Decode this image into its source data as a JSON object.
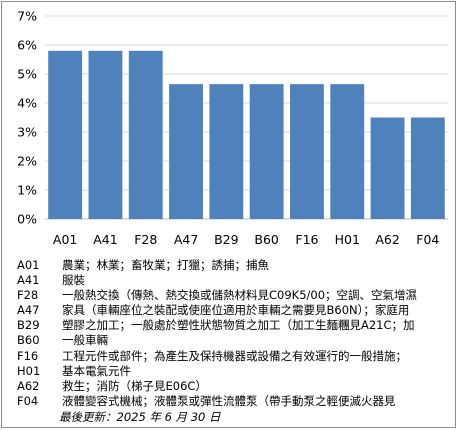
{
  "chart_data": {
    "type": "bar",
    "categories": [
      "A01",
      "A41",
      "F28",
      "A47",
      "B29",
      "B60",
      "F16",
      "H01",
      "A62",
      "F04"
    ],
    "values": [
      5.8,
      5.8,
      5.8,
      4.65,
      4.65,
      4.65,
      4.65,
      4.65,
      3.5,
      3.5
    ],
    "y_ticks": [
      "0%",
      "1%",
      "2%",
      "3%",
      "4%",
      "5%",
      "6%",
      "7%"
    ],
    "ylim": [
      0,
      7
    ],
    "grid": true,
    "bar_color": "#4f81bd",
    "grid_color": "#d9d9d9",
    "legend": [
      {
        "code": "A01",
        "desc": "農業；林業；畜牧業；打獵；誘捕；捕魚"
      },
      {
        "code": "A41",
        "desc": "服裝"
      },
      {
        "code": "F28",
        "desc": "一般熱交換（傳熱、熱交換或儲熱材料見C09K5/00；空調、空氣增濕"
      },
      {
        "code": "A47",
        "desc": "家具（車輛座位之裝配或使座位適用於車輛之需要見B60N）；家庭用"
      },
      {
        "code": "B29",
        "desc": "塑膠之加工；一般處於塑性狀態物質之加工（加工生麵糰見A21C；加"
      },
      {
        "code": "B60",
        "desc": "一般車輛"
      },
      {
        "code": "F16",
        "desc": "工程元件或部件；為產生及保持機器或設備之有效運行的一般措施；"
      },
      {
        "code": "H01",
        "desc": "基本電氣元件"
      },
      {
        "code": "A62",
        "desc": "救生；消防（梯子見E06C）"
      },
      {
        "code": "F04",
        "desc": "液體變容式機械；液體泵或彈性流體泵（帶手動泵之輕便滅火器見"
      }
    ],
    "updated": "最後更新：2025 年 6 月 30 日"
  }
}
